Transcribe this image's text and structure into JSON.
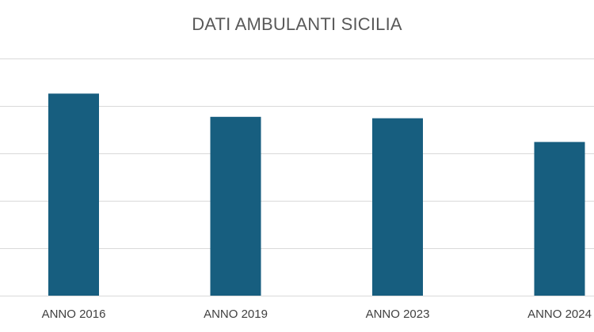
{
  "chart_data": {
    "type": "bar",
    "title": "DATI AMBULANTI SICILIA",
    "xlabel": "",
    "ylabel": "",
    "categories": [
      "ANNO 2016",
      "ANNO 2019",
      "ANNO 2023",
      "ANNO 2024"
    ],
    "values": [
      4.26,
      3.77,
      3.74,
      3.24
    ],
    "ylim": [
      0,
      5
    ],
    "grid": true,
    "y_tick_labels_visible": false,
    "legend": "none",
    "bar_color": "#175e7f"
  }
}
